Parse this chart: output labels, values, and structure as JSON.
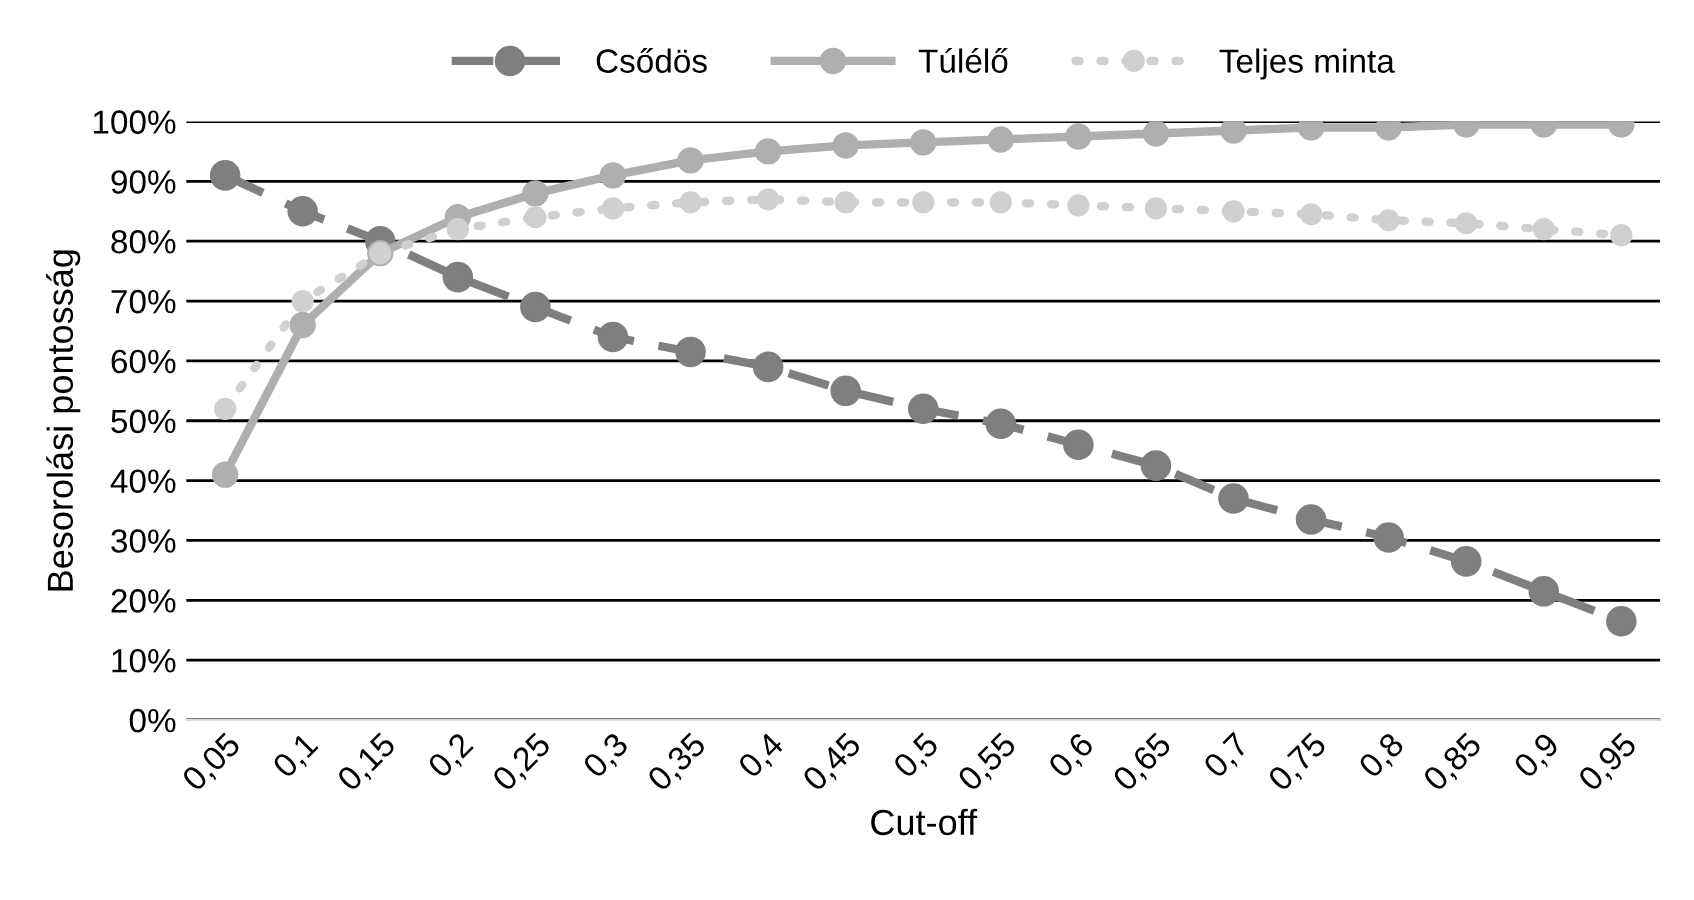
{
  "chart_data": {
    "type": "line",
    "xlabel": "Cut-off",
    "ylabel": "Besorolási pontosság",
    "categories": [
      "0,05",
      "0,1",
      "0,15",
      "0,2",
      "0,25",
      "0,3",
      "0,35",
      "0,4",
      "0,45",
      "0,5",
      "0,55",
      "0,6",
      "0,65",
      "0,7",
      "0,75",
      "0,8",
      "0,85",
      "0,9",
      "0,95"
    ],
    "series": [
      {
        "name": "Csődös",
        "color": "#7f7f7f",
        "line_style": "dashed",
        "values": [
          91,
          85,
          80,
          74,
          69,
          64,
          61.5,
          59,
          55,
          52,
          49.5,
          46,
          42.5,
          37,
          33.5,
          30.5,
          26.5,
          21.5,
          16.5
        ]
      },
      {
        "name": "Túlélő",
        "color": "#afafaf",
        "line_style": "solid",
        "values": [
          41,
          66,
          78,
          84,
          88,
          91,
          93.5,
          95,
          96,
          96.5,
          97,
          97.5,
          98,
          98.5,
          99,
          99,
          99.5,
          99.5,
          99.5
        ]
      },
      {
        "name": "Teljes minta",
        "color": "#d0d0d0",
        "line_style": "dotted",
        "values": [
          52,
          70,
          78,
          82,
          84,
          85.5,
          86.5,
          87,
          86.5,
          86.5,
          86.5,
          86,
          85.5,
          85,
          84.5,
          83.5,
          83,
          82,
          81
        ]
      }
    ],
    "ylim": [
      0,
      100
    ],
    "yticks": [
      {
        "value": 0,
        "label": "0%"
      },
      {
        "value": 10,
        "label": "10%"
      },
      {
        "value": 20,
        "label": "20%"
      },
      {
        "value": 30,
        "label": "30%"
      },
      {
        "value": 40,
        "label": "40%"
      },
      {
        "value": 50,
        "label": "50%"
      },
      {
        "value": 60,
        "label": "60%"
      },
      {
        "value": 70,
        "label": "70%"
      },
      {
        "value": 80,
        "label": "80%"
      },
      {
        "value": 90,
        "label": "90%"
      },
      {
        "value": 100,
        "label": "100%"
      }
    ],
    "grid": "y",
    "legend": "top",
    "marker": "circle"
  }
}
